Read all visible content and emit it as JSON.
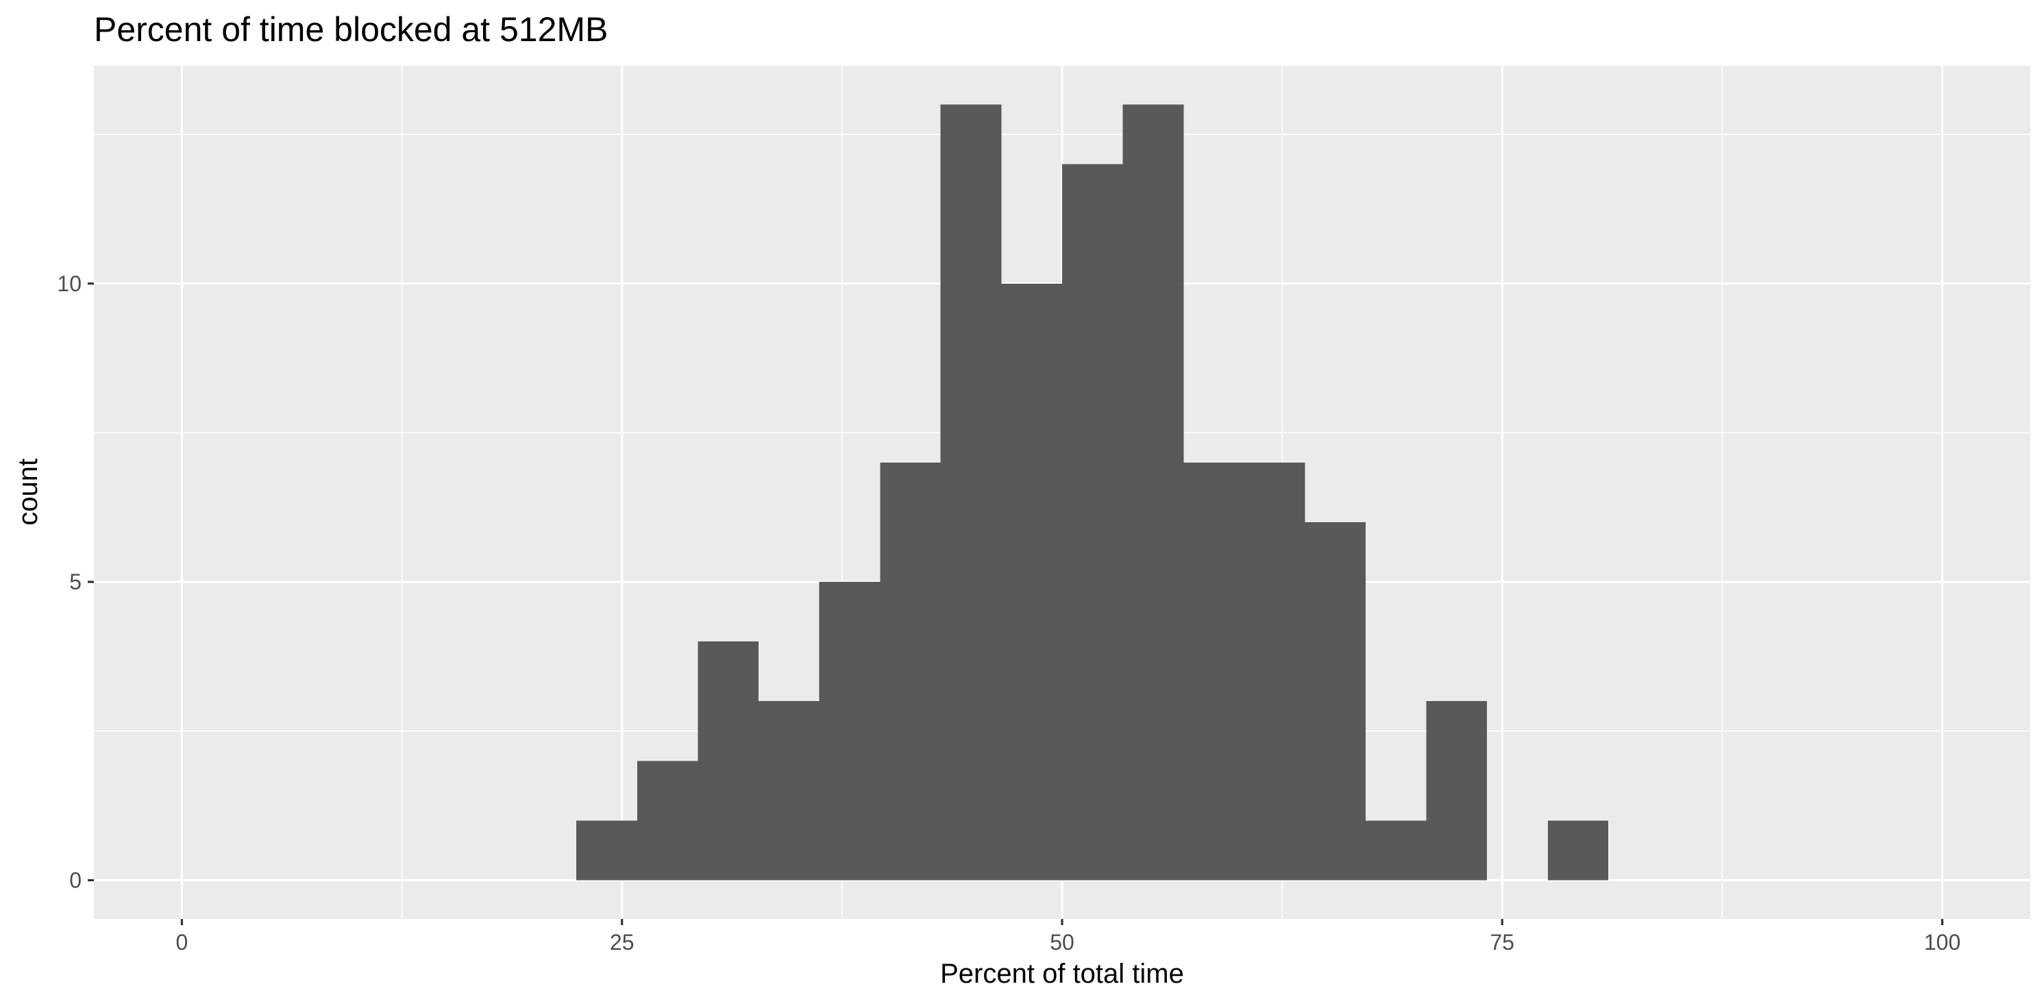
{
  "chart_data": {
    "type": "bar",
    "subtype": "histogram",
    "title": "Percent of time blocked at 512MB",
    "xlabel": "Percent of total time",
    "ylabel": "count",
    "xlim": [
      -5,
      105
    ],
    "ylim": [
      -0.65,
      13.65
    ],
    "x_ticks": [
      {
        "value": 0,
        "label": "0"
      },
      {
        "value": 25,
        "label": "25"
      },
      {
        "value": 50,
        "label": "50"
      },
      {
        "value": 75,
        "label": "75"
      },
      {
        "value": 100,
        "label": "100"
      }
    ],
    "y_ticks": [
      {
        "value": 0,
        "label": "0"
      },
      {
        "value": 5,
        "label": "5"
      },
      {
        "value": 10,
        "label": "10"
      }
    ],
    "x_minor_gridlines": [
      12.5,
      37.5,
      62.5,
      87.5
    ],
    "y_minor_gridlines": [
      2.5,
      7.5,
      12.5
    ],
    "grid": true,
    "bin_width": 3.448,
    "bins": [
      {
        "start": 22.41,
        "end": 25.86,
        "count": 1
      },
      {
        "start": 25.86,
        "end": 29.31,
        "count": 2
      },
      {
        "start": 29.31,
        "end": 32.76,
        "count": 4
      },
      {
        "start": 32.76,
        "end": 36.21,
        "count": 3
      },
      {
        "start": 36.21,
        "end": 39.66,
        "count": 5
      },
      {
        "start": 39.66,
        "end": 43.1,
        "count": 7
      },
      {
        "start": 43.1,
        "end": 46.55,
        "count": 13
      },
      {
        "start": 46.55,
        "end": 50.0,
        "count": 10
      },
      {
        "start": 50.0,
        "end": 53.45,
        "count": 12
      },
      {
        "start": 53.45,
        "end": 56.9,
        "count": 13
      },
      {
        "start": 56.9,
        "end": 60.34,
        "count": 7
      },
      {
        "start": 60.34,
        "end": 63.79,
        "count": 7
      },
      {
        "start": 63.79,
        "end": 67.24,
        "count": 6
      },
      {
        "start": 67.24,
        "end": 70.69,
        "count": 1
      },
      {
        "start": 70.69,
        "end": 74.14,
        "count": 3
      },
      {
        "start": 74.14,
        "end": 77.59,
        "count": 0
      },
      {
        "start": 77.59,
        "end": 81.03,
        "count": 1
      }
    ],
    "colors": {
      "panel_background": "#EBEBEB",
      "gridline": "#FFFFFF",
      "bar_fill": "#595959",
      "tick_label": "#4D4D4D",
      "tick_mark": "#333333",
      "text": "#000000"
    }
  }
}
